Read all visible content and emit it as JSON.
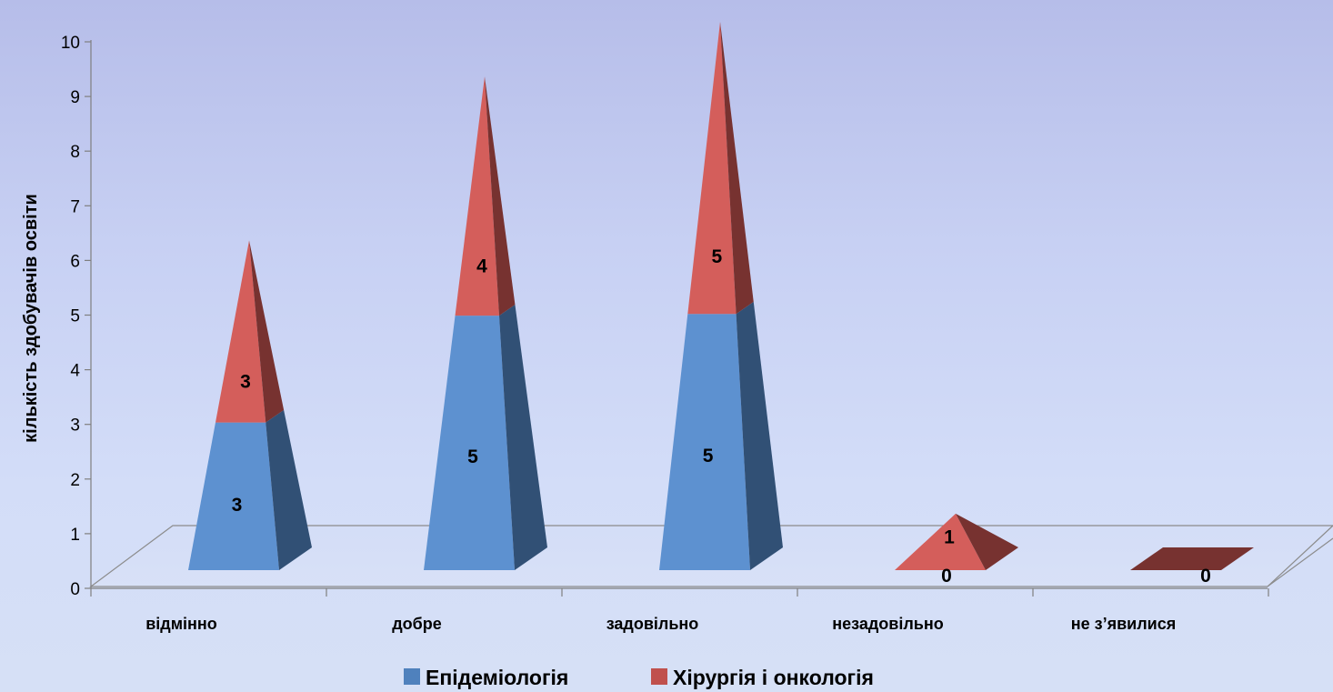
{
  "chart_data": {
    "type": "bar",
    "shape": "pyramid-3d-stacked",
    "categories": [
      "відмінно",
      "добре",
      "задовільно",
      "незадовільно",
      "не з’явилися"
    ],
    "series": [
      {
        "name": "Епідеміологія",
        "values": [
          3,
          5,
          5,
          0,
          0
        ],
        "color": "#4f81bd"
      },
      {
        "name": "Хірургія і онкологія",
        "values": [
          3,
          4,
          5,
          1,
          0
        ],
        "color": "#c0504d"
      }
    ],
    "ylabel": "кількість здобувачів освіти",
    "ylim": [
      0,
      10
    ],
    "yticks": [
      0,
      1,
      2,
      3,
      4,
      5,
      6,
      7,
      8,
      9,
      10
    ],
    "grid": false,
    "legend_position": "bottom"
  }
}
